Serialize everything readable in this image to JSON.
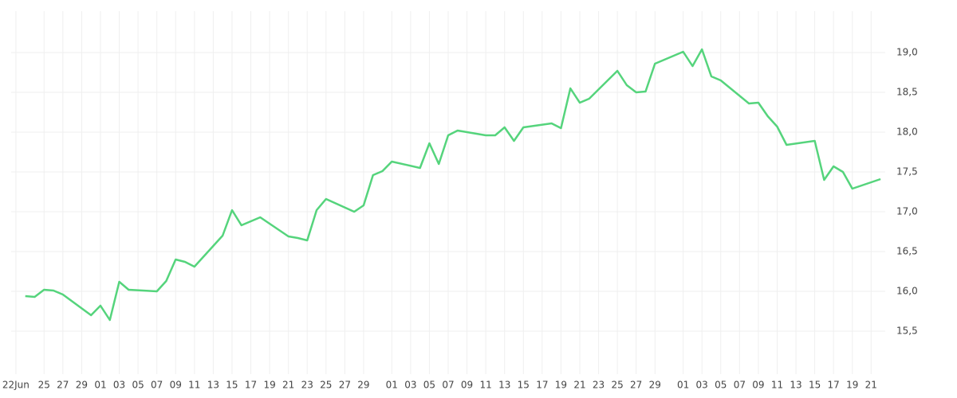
{
  "chart_data": {
    "type": "line",
    "x": [
      1,
      2,
      3,
      4,
      5,
      8,
      9,
      10,
      11,
      12,
      15,
      16,
      17,
      18,
      19,
      22,
      23,
      24,
      26,
      29,
      30,
      31,
      32,
      33,
      36,
      37,
      38,
      39,
      40,
      43,
      44,
      45,
      46,
      47,
      50,
      51,
      52,
      53,
      54,
      57,
      58,
      59,
      60,
      61,
      64,
      65,
      66,
      67,
      68,
      71,
      72,
      73,
      74,
      75,
      78,
      79,
      80,
      81,
      82,
      85,
      86,
      87,
      88,
      89,
      92
    ],
    "series": [
      {
        "color": "#55d47c",
        "values": [
          15.94,
          15.93,
          16.02,
          16.01,
          15.96,
          15.7,
          15.82,
          15.64,
          16.12,
          16.02,
          16.0,
          16.13,
          16.4,
          16.37,
          16.31,
          16.7,
          17.02,
          16.83,
          16.93,
          16.69,
          16.67,
          16.64,
          17.02,
          17.16,
          17.0,
          17.08,
          17.46,
          17.51,
          17.63,
          17.55,
          17.86,
          17.6,
          17.96,
          18.02,
          17.96,
          17.96,
          18.06,
          17.89,
          18.06,
          18.11,
          18.05,
          18.55,
          18.37,
          18.42,
          18.77,
          18.59,
          18.5,
          18.51,
          18.86,
          19.01,
          18.83,
          19.04,
          18.7,
          18.65,
          18.36,
          18.37,
          18.2,
          18.07,
          17.84,
          17.89,
          17.4,
          17.57,
          17.5,
          17.29,
          17.41
        ]
      }
    ],
    "xlim": [
      -0.5,
      92.5
    ],
    "xticks": [
      {
        "value": 0,
        "label": "22Jun"
      },
      {
        "value": 3,
        "label": "25"
      },
      {
        "value": 5,
        "label": "27"
      },
      {
        "value": 7,
        "label": "29"
      },
      {
        "value": 9,
        "label": "01"
      },
      {
        "value": 11,
        "label": "03"
      },
      {
        "value": 13,
        "label": "05"
      },
      {
        "value": 15,
        "label": "07"
      },
      {
        "value": 17,
        "label": "09"
      },
      {
        "value": 19,
        "label": "11"
      },
      {
        "value": 21,
        "label": "13"
      },
      {
        "value": 23,
        "label": "15"
      },
      {
        "value": 25,
        "label": "17"
      },
      {
        "value": 27,
        "label": "19"
      },
      {
        "value": 29,
        "label": "21"
      },
      {
        "value": 31,
        "label": "23"
      },
      {
        "value": 33,
        "label": "25"
      },
      {
        "value": 35,
        "label": "27"
      },
      {
        "value": 37,
        "label": "29"
      },
      {
        "value": 40,
        "label": "01"
      },
      {
        "value": 42,
        "label": "03"
      },
      {
        "value": 44,
        "label": "05"
      },
      {
        "value": 46,
        "label": "07"
      },
      {
        "value": 48,
        "label": "09"
      },
      {
        "value": 50,
        "label": "11"
      },
      {
        "value": 52,
        "label": "13"
      },
      {
        "value": 54,
        "label": "15"
      },
      {
        "value": 56,
        "label": "17"
      },
      {
        "value": 58,
        "label": "19"
      },
      {
        "value": 60,
        "label": "21"
      },
      {
        "value": 62,
        "label": "23"
      },
      {
        "value": 64,
        "label": "25"
      },
      {
        "value": 66,
        "label": "27"
      },
      {
        "value": 68,
        "label": "29"
      },
      {
        "value": 71,
        "label": "01"
      },
      {
        "value": 73,
        "label": "03"
      },
      {
        "value": 75,
        "label": "05"
      },
      {
        "value": 77,
        "label": "07"
      },
      {
        "value": 79,
        "label": "09"
      },
      {
        "value": 81,
        "label": "11"
      },
      {
        "value": 83,
        "label": "13"
      },
      {
        "value": 85,
        "label": "15"
      },
      {
        "value": 87,
        "label": "17"
      },
      {
        "value": 89,
        "label": "19"
      },
      {
        "value": 91,
        "label": "21"
      }
    ],
    "ylim": [
      14.96,
      19.52
    ],
    "yticks": [
      {
        "value": 15.5,
        "label": "15,5"
      },
      {
        "value": 16.0,
        "label": "16,0"
      },
      {
        "value": 16.5,
        "label": "16,5"
      },
      {
        "value": 17.0,
        "label": "17,0"
      },
      {
        "value": 17.5,
        "label": "17,5"
      },
      {
        "value": 18.0,
        "label": "18,0"
      },
      {
        "value": 18.5,
        "label": "18,5"
      },
      {
        "value": 19.0,
        "label": "19,0"
      }
    ],
    "grid": true
  }
}
